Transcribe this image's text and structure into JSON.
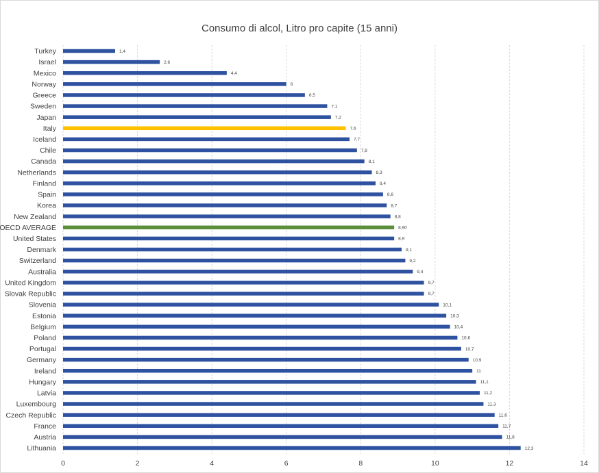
{
  "chart_data": {
    "type": "bar",
    "orientation": "horizontal",
    "title": "Consumo di alcol, Litro pro capite (15 anni)",
    "xlim": [
      0,
      14
    ],
    "xticks": [
      0,
      2,
      4,
      6,
      8,
      10,
      12,
      14
    ],
    "grid": true,
    "colors": {
      "default": "#2f52a0",
      "italy": "#ffc000",
      "oecd_average": "#5b8f3a"
    },
    "categories": [
      "Turkey",
      "Israel",
      "Mexico",
      "Norway",
      "Greece",
      "Sweden",
      "Japan",
      "Italy",
      "Iceland",
      "Chile",
      "Canada",
      "Netherlands",
      "Finland",
      "Spain",
      "Korea",
      "New Zealand",
      "OECD AVERAGE",
      "United States",
      "Denmark",
      "Switzerland",
      "Australia",
      "United Kingdom",
      "Slovak Republic",
      "Slovenia",
      "Estonia",
      "Belgium",
      "Poland",
      "Portugal",
      "Germany",
      "Ireland",
      "Hungary",
      "Latvia",
      "Luxembourg",
      "Czech Republic",
      "France",
      "Austria",
      "Lithuania"
    ],
    "values": [
      1.4,
      2.6,
      4.4,
      6,
      6.5,
      7.1,
      7.2,
      7.6,
      7.7,
      7.9,
      8.1,
      8.3,
      8.4,
      8.6,
      8.7,
      8.8,
      8.9,
      8.9,
      9.1,
      9.2,
      9.4,
      9.7,
      9.7,
      10.1,
      10.3,
      10.4,
      10.6,
      10.7,
      10.9,
      11,
      11.1,
      11.2,
      11.3,
      11.6,
      11.7,
      11.8,
      12.3
    ],
    "value_labels": [
      "1,4",
      "2,6",
      "4,4",
      "6",
      "6,5",
      "7,1",
      "7,2",
      "7,6",
      "7,7",
      "7,9",
      "8,1",
      "8,3",
      "8,4",
      "8,6",
      "8,7",
      "8,8",
      "8,90",
      "8,9",
      "9,1",
      "9,2",
      "9,4",
      "9,7",
      "9,7",
      "10,1",
      "10,3",
      "10,4",
      "10,6",
      "10,7",
      "10,9",
      "11",
      "11,1",
      "11,2",
      "11,3",
      "11,6",
      "11,7",
      "11,8",
      "12,3"
    ],
    "highlight": {
      "Italy": "italy",
      "OECD AVERAGE": "oecd_average"
    }
  }
}
